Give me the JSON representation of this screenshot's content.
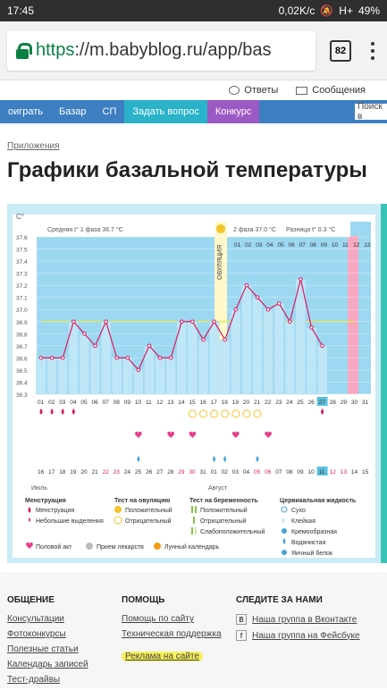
{
  "status": {
    "time": "17:45",
    "speed": "0,02K/c",
    "network": "H+",
    "battery": "49%"
  },
  "browser": {
    "url_scheme": "https",
    "url_rest": "://m.babyblog.ru/app/bas",
    "tab_count": "82"
  },
  "top_links": {
    "answers": "Ответы",
    "messages": "Сообщения"
  },
  "nav": {
    "items": [
      "оиграть",
      "Базар",
      "СП"
    ],
    "ask": "Задать вопрос",
    "contest": "Конкурс",
    "search": "Поиск в"
  },
  "breadcrumb": "Приложения",
  "page_title": "Графики базальной температуры",
  "chart_data": {
    "type": "line",
    "ylabel": "C°",
    "ylim": [
      36.3,
      37.6
    ],
    "y_ticks": [
      "37.6",
      "37.5",
      "37.4",
      "37.3",
      "37.2",
      "37.1",
      "37.0",
      "36.9",
      "36.8",
      "36.7",
      "36.6",
      "36.5",
      "36.4",
      "36.3"
    ],
    "phase1_label": "Средняя t° 1 фаза 36.7 °C",
    "phase2_label": "2 фаза 37.0 °C",
    "diff_label": "Разница t° 0.3 °C",
    "ovulation_label": "ОВУЛЯЦИЯ",
    "top_days": [
      "01",
      "02",
      "03",
      "04",
      "05",
      "06",
      "07",
      "08",
      "09",
      "10",
      "11",
      "12",
      "13"
    ],
    "days": [
      "01",
      "02",
      "03",
      "04",
      "05",
      "06",
      "07",
      "08",
      "09",
      "10",
      "11",
      "12",
      "13",
      "14",
      "15",
      "16",
      "17",
      "18",
      "19",
      "20",
      "21",
      "22",
      "23",
      "24",
      "25",
      "26",
      "27",
      "28",
      "29",
      "30",
      "31"
    ],
    "temps": [
      36.6,
      36.6,
      36.6,
      36.9,
      36.8,
      36.7,
      36.9,
      36.6,
      36.6,
      36.5,
      36.7,
      36.6,
      36.6,
      36.9,
      36.9,
      36.75,
      36.9,
      36.75,
      37.0,
      37.2,
      37.1,
      37.0,
      37.05,
      36.9,
      37.25,
      36.85,
      36.7
    ],
    "dates": [
      "16",
      "17",
      "18",
      "19",
      "20",
      "21",
      "22",
      "23",
      "24",
      "25",
      "26",
      "27",
      "28",
      "29",
      "30",
      "31",
      "01",
      "02",
      "03",
      "04",
      "05",
      "06",
      "07",
      "08",
      "09",
      "10",
      "11",
      "12",
      "13",
      "14",
      "15"
    ],
    "month1": "Июль",
    "month2": "Август",
    "series_color": "#d81b60",
    "coverline_color": "#e6e65a"
  },
  "legend": {
    "menstr_h": "Менструация",
    "menstr": "Менструация",
    "small": "Небольшие выделения",
    "ovtest_h": "Тест на овуляцию",
    "pos": "Положительный",
    "neg": "Отрицательный",
    "preg_h": "Тест на беременность",
    "pos2": "Положительный",
    "neg2": "Отрицательный",
    "weak": "Слабоположительный",
    "cerv_h": "Цервикальная жидкость",
    "dry": "Сухо",
    "sticky": "Клейкая",
    "creamy": "Кремообразная",
    "watery": "Водянистая",
    "egg": "Яичный белок",
    "sex": "Половой акт",
    "meds": "Прием лекарств",
    "lunar": "Лунный календарь"
  },
  "footer": {
    "c1_h": "ОБЩЕНИЕ",
    "c1": [
      "Консультации",
      "Фотоконкурсы",
      "Полезные статьи",
      "Календарь записей",
      "Тест-драйвы"
    ],
    "c2_h": "ПОМОЩЬ",
    "c2": [
      "Помощь по сайту",
      "Техническая поддержка",
      "Реклама на сайте"
    ],
    "c3_h": "СЛЕДИТЕ ЗА НАМИ",
    "vk": "Наша группа в Вконтакте",
    "fb": "Наша группа на Фейсбуке"
  }
}
